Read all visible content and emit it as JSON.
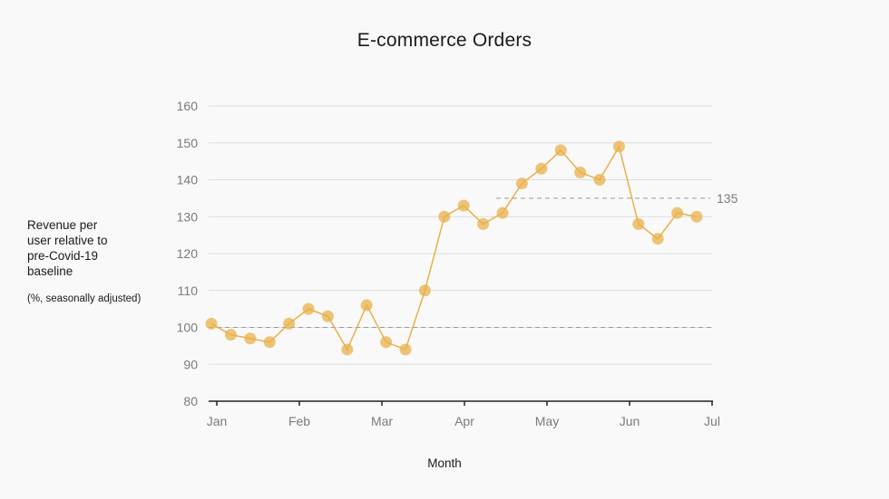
{
  "chart": {
    "title": "E-commerce Orders",
    "ylabel_lines": [
      "Revenue per",
      "user relative to",
      "pre-Covid-19",
      "baseline"
    ],
    "ylabel_note": "(%, seasonally adjusted)",
    "xlabel": "Month",
    "reference_label": "135"
  },
  "colors": {
    "line": "#e8b04a",
    "marker": "#e8b04a",
    "grid": "#dddddd",
    "axis": "#222222",
    "reference": "#999999",
    "background": "#f9f9f9"
  },
  "chart_data": {
    "type": "line",
    "title": "E-commerce Orders",
    "xlabel": "Month",
    "ylabel": "Revenue per user relative to pre-Covid-19 baseline (%, seasonally adjusted)",
    "ylim": [
      80,
      160
    ],
    "yticks": [
      80,
      90,
      100,
      110,
      120,
      130,
      140,
      150,
      160
    ],
    "xticks": [
      "Jan",
      "Feb",
      "Mar",
      "Apr",
      "May",
      "Jun",
      "Jul"
    ],
    "grid": true,
    "legend": null,
    "reference_lines": [
      {
        "value": 100,
        "style": "dashed",
        "span": "full"
      },
      {
        "value": 135,
        "style": "dashed",
        "span": "mid-Apr to Jul",
        "label": "135"
      }
    ],
    "series": [
      {
        "name": "E-commerce Orders",
        "x_weeks": [
          0,
          1,
          2,
          3,
          4,
          5,
          6,
          7,
          8,
          9,
          10,
          11,
          12,
          13,
          14,
          15,
          16,
          17,
          18,
          19,
          20,
          21,
          22,
          23,
          24,
          25
        ],
        "values": [
          101,
          98,
          97,
          96,
          101,
          105,
          103,
          94,
          106,
          96,
          94,
          110,
          130,
          133,
          128,
          131,
          139,
          143,
          148,
          142,
          140,
          149,
          128,
          124,
          131,
          130
        ]
      }
    ]
  }
}
